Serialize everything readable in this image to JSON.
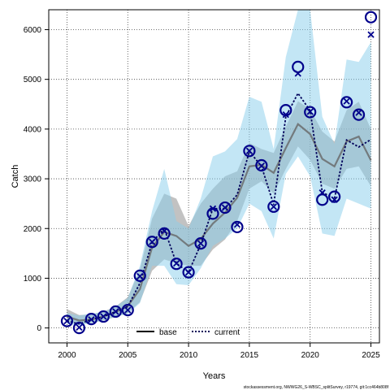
{
  "chart_data": {
    "type": "line",
    "xlabel": "Years",
    "ylabel": "Catch",
    "xlim": [
      1998.5,
      2025.7
    ],
    "ylim": [
      -300,
      6400
    ],
    "xticks": [
      2000,
      2005,
      2010,
      2015,
      2020,
      2025
    ],
    "yticks": [
      0,
      1000,
      2000,
      3000,
      4000,
      5000,
      6000
    ],
    "grid": true,
    "legend": "bottom-center",
    "footnote": "stockassessment.org, NWWG26_S-WBSC_splitSurvey, r19774, git:1cc464b808f",
    "colors": {
      "base_band": "#999999",
      "current_band": "#87ceeb",
      "base_line": "#666666",
      "current_line": "#00005a",
      "points": "#00008b"
    },
    "series": [
      {
        "name": "base",
        "line": [
          [
            2000,
            230
          ],
          [
            2001,
            150
          ],
          [
            2002,
            170
          ],
          [
            2003,
            230
          ],
          [
            2004,
            320
          ],
          [
            2005,
            440
          ],
          [
            2006,
            780
          ],
          [
            2007,
            1620
          ],
          [
            2008,
            1930
          ],
          [
            2009,
            1850
          ],
          [
            2010,
            1650
          ],
          [
            2011,
            1790
          ],
          [
            2012,
            2100
          ],
          [
            2013,
            2320
          ],
          [
            2014,
            2620
          ],
          [
            2015,
            3250
          ],
          [
            2016,
            3280
          ],
          [
            2017,
            3120
          ],
          [
            2018,
            3620
          ],
          [
            2019,
            4100
          ],
          [
            2020,
            3900
          ],
          [
            2021,
            3400
          ],
          [
            2022,
            3250
          ],
          [
            2023,
            3750
          ],
          [
            2024,
            3850
          ],
          [
            2025,
            3370
          ]
        ],
        "upper": [
          [
            2000,
            380
          ],
          [
            2001,
            260
          ],
          [
            2002,
            270
          ],
          [
            2003,
            330
          ],
          [
            2004,
            430
          ],
          [
            2005,
            620
          ],
          [
            2006,
            1180
          ],
          [
            2007,
            2200
          ],
          [
            2008,
            2700
          ],
          [
            2009,
            2600
          ],
          [
            2010,
            2050
          ],
          [
            2011,
            2500
          ],
          [
            2012,
            2800
          ],
          [
            2013,
            3050
          ],
          [
            2014,
            3150
          ],
          [
            2015,
            3720
          ],
          [
            2016,
            3600
          ],
          [
            2017,
            3520
          ],
          [
            2018,
            4050
          ],
          [
            2019,
            4560
          ],
          [
            2020,
            4400
          ],
          [
            2021,
            3950
          ],
          [
            2022,
            3750
          ],
          [
            2023,
            4380
          ],
          [
            2024,
            4550
          ],
          [
            2025,
            4000
          ]
        ],
        "lower": [
          [
            2000,
            130
          ],
          [
            2001,
            80
          ],
          [
            2002,
            100
          ],
          [
            2003,
            150
          ],
          [
            2004,
            220
          ],
          [
            2005,
            300
          ],
          [
            2006,
            520
          ],
          [
            2007,
            1150
          ],
          [
            2008,
            1380
          ],
          [
            2009,
            1300
          ],
          [
            2010,
            1250
          ],
          [
            2011,
            1250
          ],
          [
            2012,
            1580
          ],
          [
            2013,
            1780
          ],
          [
            2014,
            2150
          ],
          [
            2015,
            2800
          ],
          [
            2016,
            2950
          ],
          [
            2017,
            2700
          ],
          [
            2018,
            3200
          ],
          [
            2019,
            3650
          ],
          [
            2020,
            3380
          ],
          [
            2021,
            2900
          ],
          [
            2022,
            2800
          ],
          [
            2023,
            3200
          ],
          [
            2024,
            3250
          ],
          [
            2025,
            2850
          ]
        ]
      },
      {
        "name": "current",
        "line": [
          [
            2000,
            140
          ],
          [
            2001,
            80
          ],
          [
            2002,
            170
          ],
          [
            2003,
            230
          ],
          [
            2004,
            330
          ],
          [
            2005,
            430
          ],
          [
            2006,
            900
          ],
          [
            2007,
            1720
          ],
          [
            2008,
            2000
          ],
          [
            2009,
            1300
          ],
          [
            2010,
            1120
          ],
          [
            2011,
            1680
          ],
          [
            2012,
            2400
          ],
          [
            2013,
            2400
          ],
          [
            2014,
            2680
          ],
          [
            2015,
            3550
          ],
          [
            2016,
            3250
          ],
          [
            2017,
            2480
          ],
          [
            2018,
            4250
          ],
          [
            2019,
            4720
          ],
          [
            2020,
            4370
          ],
          [
            2021,
            2730
          ],
          [
            2022,
            2600
          ],
          [
            2023,
            3780
          ],
          [
            2024,
            3640
          ],
          [
            2025,
            3790
          ]
        ],
        "upper": [
          [
            2000,
            300
          ],
          [
            2001,
            250
          ],
          [
            2002,
            290
          ],
          [
            2003,
            320
          ],
          [
            2004,
            430
          ],
          [
            2005,
            600
          ],
          [
            2006,
            1250
          ],
          [
            2007,
            2350
          ],
          [
            2008,
            3200
          ],
          [
            2009,
            2150
          ],
          [
            2010,
            2000
          ],
          [
            2011,
            2600
          ],
          [
            2012,
            3450
          ],
          [
            2013,
            3550
          ],
          [
            2014,
            3800
          ],
          [
            2015,
            4650
          ],
          [
            2016,
            4550
          ],
          [
            2017,
            3600
          ],
          [
            2018,
            5450
          ],
          [
            2019,
            6400
          ],
          [
            2020,
            6400
          ],
          [
            2021,
            4250
          ],
          [
            2022,
            3700
          ],
          [
            2023,
            5400
          ],
          [
            2024,
            5350
          ],
          [
            2025,
            5750
          ]
        ],
        "lower": [
          [
            2000,
            80
          ],
          [
            2001,
            50
          ],
          [
            2002,
            100
          ],
          [
            2003,
            150
          ],
          [
            2004,
            230
          ],
          [
            2005,
            280
          ],
          [
            2006,
            500
          ],
          [
            2007,
            1250
          ],
          [
            2008,
            1250
          ],
          [
            2009,
            880
          ],
          [
            2010,
            860
          ],
          [
            2011,
            1200
          ],
          [
            2012,
            1650
          ],
          [
            2013,
            1800
          ],
          [
            2014,
            2000
          ],
          [
            2015,
            2500
          ],
          [
            2016,
            2350
          ],
          [
            2017,
            1800
          ],
          [
            2018,
            3100
          ],
          [
            2019,
            3450
          ],
          [
            2020,
            3050
          ],
          [
            2021,
            1900
          ],
          [
            2022,
            1850
          ],
          [
            2023,
            2600
          ],
          [
            2024,
            2500
          ],
          [
            2025,
            2400
          ]
        ]
      }
    ],
    "observed_circles": [
      [
        2000,
        140
      ],
      [
        2001,
        0
      ],
      [
        2002,
        180
      ],
      [
        2003,
        230
      ],
      [
        2004,
        330
      ],
      [
        2005,
        360
      ],
      [
        2006,
        1050
      ],
      [
        2007,
        1730
      ],
      [
        2008,
        1900
      ],
      [
        2009,
        1290
      ],
      [
        2010,
        1120
      ],
      [
        2011,
        1700
      ],
      [
        2012,
        2300
      ],
      [
        2013,
        2420
      ],
      [
        2014,
        2030
      ],
      [
        2015,
        3560
      ],
      [
        2016,
        3270
      ],
      [
        2017,
        2440
      ],
      [
        2018,
        4380
      ],
      [
        2019,
        5250
      ],
      [
        2020,
        4340
      ],
      [
        2021,
        2580
      ],
      [
        2022,
        2640
      ],
      [
        2023,
        4540
      ],
      [
        2024,
        4290
      ],
      [
        2025,
        6250
      ]
    ],
    "observed_crosses": [
      [
        2000,
        140
      ],
      [
        2001,
        10
      ],
      [
        2002,
        170
      ],
      [
        2003,
        230
      ],
      [
        2004,
        330
      ],
      [
        2005,
        360
      ],
      [
        2006,
        1040
      ],
      [
        2007,
        1730
      ],
      [
        2008,
        1950
      ],
      [
        2009,
        1300
      ],
      [
        2010,
        1120
      ],
      [
        2011,
        1700
      ],
      [
        2012,
        2400
      ],
      [
        2013,
        2420
      ],
      [
        2014,
        2080
      ],
      [
        2015,
        3560
      ],
      [
        2016,
        3260
      ],
      [
        2017,
        2440
      ],
      [
        2018,
        4290
      ],
      [
        2019,
        5120
      ],
      [
        2020,
        4350
      ],
      [
        2021,
        2720
      ],
      [
        2022,
        2580
      ],
      [
        2023,
        4560
      ],
      [
        2024,
        4330
      ],
      [
        2025,
        5900
      ]
    ]
  }
}
